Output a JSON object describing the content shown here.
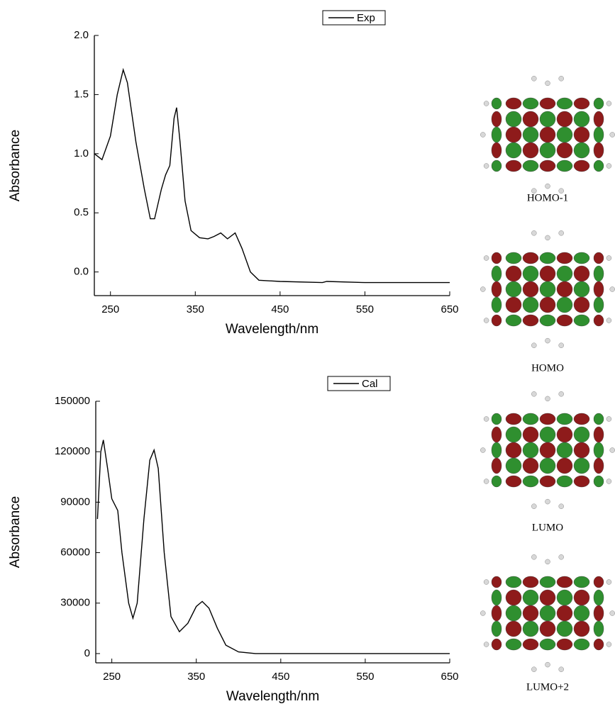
{
  "chart_data": [
    {
      "type": "line",
      "xlabel": "Wavelength/nm",
      "ylabel": "Absorbance",
      "xlim": [
        231,
        650
      ],
      "xticks": [
        250,
        350,
        450,
        550,
        650
      ],
      "ylim": [
        -0.2,
        2.0
      ],
      "yticks": [
        {
          "value": 0,
          "label": "0.0"
        },
        0.5,
        {
          "value": 1,
          "label": "1.0"
        },
        1.5,
        {
          "value": 2,
          "label": "2.0"
        }
      ],
      "legend": "top",
      "series": [
        {
          "name": "Exp",
          "color": "#000000",
          "x": [
            231,
            240,
            250,
            258,
            265,
            270,
            280,
            290,
            297,
            302,
            310,
            315,
            320,
            325,
            328,
            332,
            338,
            345,
            355,
            365,
            372,
            380,
            388,
            397,
            405,
            415,
            425,
            450,
            500,
            505,
            550,
            600,
            650
          ],
          "values": [
            1.0,
            0.95,
            1.15,
            1.5,
            1.71,
            1.6,
            1.1,
            0.7,
            0.45,
            0.45,
            0.7,
            0.82,
            0.9,
            1.3,
            1.39,
            1.1,
            0.6,
            0.35,
            0.29,
            0.28,
            0.3,
            0.33,
            0.28,
            0.33,
            0.2,
            0.0,
            -0.07,
            -0.08,
            -0.09,
            -0.08,
            -0.09,
            -0.09,
            -0.09
          ]
        }
      ]
    },
    {
      "type": "line",
      "xlabel": "Wavelength/nm",
      "ylabel": "Absorbance",
      "xlim": [
        231,
        650
      ],
      "xticks": [
        250,
        350,
        450,
        550,
        650
      ],
      "ylim": [
        -5500,
        150000
      ],
      "yticks": [
        0,
        30000,
        60000,
        90000,
        120000,
        150000
      ],
      "legend": "top",
      "series": [
        {
          "name": "Cal",
          "color": "#000000",
          "x": [
            233,
            237,
            240,
            245,
            250,
            257,
            262,
            270,
            275,
            280,
            288,
            295,
            300,
            305,
            312,
            320,
            330,
            340,
            350,
            357,
            365,
            375,
            385,
            400,
            420,
            650
          ],
          "values": [
            80000,
            120000,
            127000,
            110000,
            92000,
            85000,
            60000,
            30000,
            21000,
            30000,
            80000,
            115000,
            121000,
            110000,
            60000,
            22000,
            13000,
            18000,
            28000,
            31000,
            27000,
            15000,
            5000,
            1000,
            0,
            0
          ]
        }
      ]
    }
  ],
  "orbital_labels": [
    "HOMO-1",
    "HOMO",
    "LUMO",
    "LUMO+2"
  ]
}
